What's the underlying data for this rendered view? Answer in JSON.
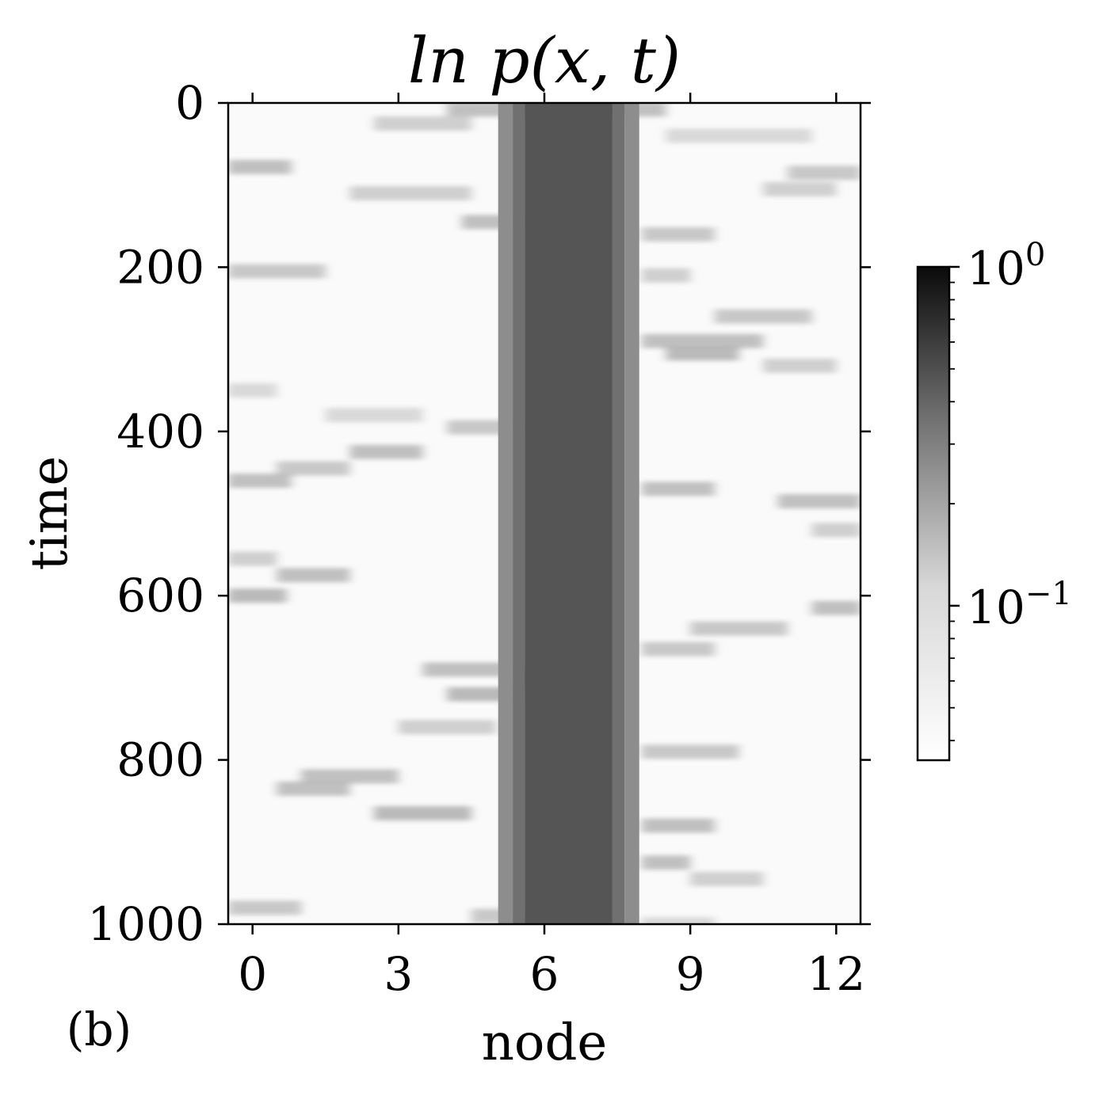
{
  "panel_label": "(b)",
  "chart_data": {
    "type": "heatmap",
    "title": "ln p(x, t)",
    "xlabel": "node",
    "ylabel": "time",
    "x_ticks": [
      "0",
      "3",
      "6",
      "9",
      "12"
    ],
    "y_ticks": [
      "0",
      "200",
      "400",
      "600",
      "800",
      "1000"
    ],
    "x_range": [
      -0.5,
      12.5
    ],
    "y_range": [
      0,
      1000
    ],
    "y_inverted": true,
    "nodes": [
      0,
      1,
      2,
      3,
      4,
      5,
      6,
      7,
      8,
      9,
      10,
      11,
      12
    ],
    "colormap": "grayscale (white = low, black = high)",
    "colorbar": {
      "scale": "log",
      "range": [
        0.035,
        1.0
      ],
      "tick_labels": [
        "10^0",
        "10^-1"
      ],
      "tick_values": [
        1.0,
        0.1
      ]
    },
    "description_values": {
      "core_nodes": [
        6,
        7
      ],
      "core_probability": 0.35,
      "background_probability": 0.035
    },
    "streaks": [
      {
        "t": 8,
        "x0": 4.0,
        "x1": 8.5,
        "v": 0.09
      },
      {
        "t": 25,
        "x0": 2.5,
        "x1": 4.5,
        "v": 0.07
      },
      {
        "t": 40,
        "x0": 8.5,
        "x1": 11.5,
        "v": 0.06
      },
      {
        "t": 78,
        "x0": -0.5,
        "x1": 0.8,
        "v": 0.09
      },
      {
        "t": 85,
        "x0": 11.0,
        "x1": 12.5,
        "v": 0.08
      },
      {
        "t": 105,
        "x0": 10.5,
        "x1": 12.0,
        "v": 0.07
      },
      {
        "t": 110,
        "x0": 2.0,
        "x1": 4.5,
        "v": 0.07
      },
      {
        "t": 145,
        "x0": 4.3,
        "x1": 5.5,
        "v": 0.09
      },
      {
        "t": 160,
        "x0": 8.0,
        "x1": 9.5,
        "v": 0.08
      },
      {
        "t": 205,
        "x0": -0.5,
        "x1": 1.5,
        "v": 0.08
      },
      {
        "t": 210,
        "x0": 8.0,
        "x1": 9.0,
        "v": 0.07
      },
      {
        "t": 260,
        "x0": 9.5,
        "x1": 11.5,
        "v": 0.08
      },
      {
        "t": 290,
        "x0": 8.0,
        "x1": 10.5,
        "v": 0.09
      },
      {
        "t": 305,
        "x0": 8.5,
        "x1": 10.0,
        "v": 0.1
      },
      {
        "t": 320,
        "x0": 10.5,
        "x1": 12.0,
        "v": 0.07
      },
      {
        "t": 350,
        "x0": -0.5,
        "x1": 0.5,
        "v": 0.06
      },
      {
        "t": 380,
        "x0": 1.5,
        "x1": 3.5,
        "v": 0.06
      },
      {
        "t": 395,
        "x0": 4.0,
        "x1": 5.5,
        "v": 0.08
      },
      {
        "t": 425,
        "x0": 2.0,
        "x1": 3.5,
        "v": 0.09
      },
      {
        "t": 445,
        "x0": 0.5,
        "x1": 2.0,
        "v": 0.08
      },
      {
        "t": 460,
        "x0": -0.5,
        "x1": 0.8,
        "v": 0.09
      },
      {
        "t": 470,
        "x0": 8.0,
        "x1": 9.5,
        "v": 0.09
      },
      {
        "t": 485,
        "x0": 10.8,
        "x1": 12.5,
        "v": 0.09
      },
      {
        "t": 520,
        "x0": 11.5,
        "x1": 12.5,
        "v": 0.07
      },
      {
        "t": 555,
        "x0": -0.5,
        "x1": 0.5,
        "v": 0.07
      },
      {
        "t": 575,
        "x0": 0.5,
        "x1": 2.0,
        "v": 0.09
      },
      {
        "t": 600,
        "x0": -0.5,
        "x1": 0.7,
        "v": 0.1
      },
      {
        "t": 615,
        "x0": 11.5,
        "x1": 12.5,
        "v": 0.09
      },
      {
        "t": 640,
        "x0": 9.0,
        "x1": 11.0,
        "v": 0.08
      },
      {
        "t": 665,
        "x0": 8.0,
        "x1": 9.5,
        "v": 0.08
      },
      {
        "t": 690,
        "x0": 3.5,
        "x1": 5.5,
        "v": 0.09
      },
      {
        "t": 700,
        "x0": 5.5,
        "x1": 6.5,
        "v": 0.5
      },
      {
        "t": 720,
        "x0": 4.0,
        "x1": 5.5,
        "v": 0.1
      },
      {
        "t": 760,
        "x0": 3.0,
        "x1": 5.0,
        "v": 0.07
      },
      {
        "t": 790,
        "x0": 8.0,
        "x1": 10.0,
        "v": 0.08
      },
      {
        "t": 820,
        "x0": 1.0,
        "x1": 3.0,
        "v": 0.09
      },
      {
        "t": 835,
        "x0": 0.5,
        "x1": 2.0,
        "v": 0.09
      },
      {
        "t": 865,
        "x0": 2.5,
        "x1": 4.5,
        "v": 0.1
      },
      {
        "t": 880,
        "x0": 8.0,
        "x1": 9.5,
        "v": 0.09
      },
      {
        "t": 925,
        "x0": 8.0,
        "x1": 9.0,
        "v": 0.09
      },
      {
        "t": 945,
        "x0": 9.0,
        "x1": 10.5,
        "v": 0.07
      },
      {
        "t": 980,
        "x0": -0.5,
        "x1": 1.0,
        "v": 0.08
      },
      {
        "t": 990,
        "x0": 4.5,
        "x1": 5.5,
        "v": 0.08
      },
      {
        "t": 1000,
        "x0": 8.0,
        "x1": 9.5,
        "v": 0.06
      }
    ]
  }
}
